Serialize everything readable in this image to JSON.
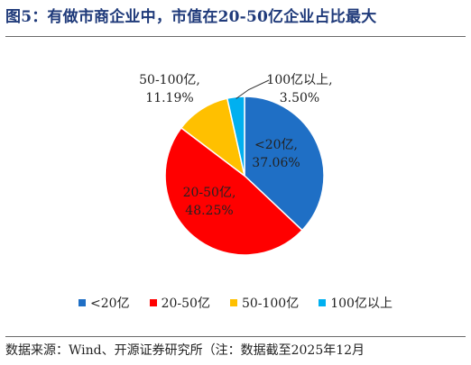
{
  "title": "图5：有做市商企业中，市值在20-50亿企业占比最大",
  "source": "数据来源：Wind、开源证券研究所（注：数据截至2025年12月",
  "chart_data": {
    "type": "pie",
    "slices": [
      {
        "name": "<20亿",
        "value": 37.06,
        "label_line1": "<20亿,",
        "label_line2": "37.06%",
        "color": "#1f6fc5"
      },
      {
        "name": "20-50亿",
        "value": 48.25,
        "label_line1": "20-50亿,",
        "label_line2": "48.25%",
        "color": "#ff0000"
      },
      {
        "name": "50-100亿",
        "value": 11.19,
        "label_line1": "50-100亿,",
        "label_line2": "11.19%",
        "color": "#ffc000"
      },
      {
        "name": "100亿以上",
        "value": 3.5,
        "label_line1": "100亿以上,",
        "label_line2": "3.50%",
        "color": "#00b0f0"
      }
    ],
    "start_angle_deg": 0,
    "direction": "clockwise",
    "legend_position": "bottom"
  }
}
